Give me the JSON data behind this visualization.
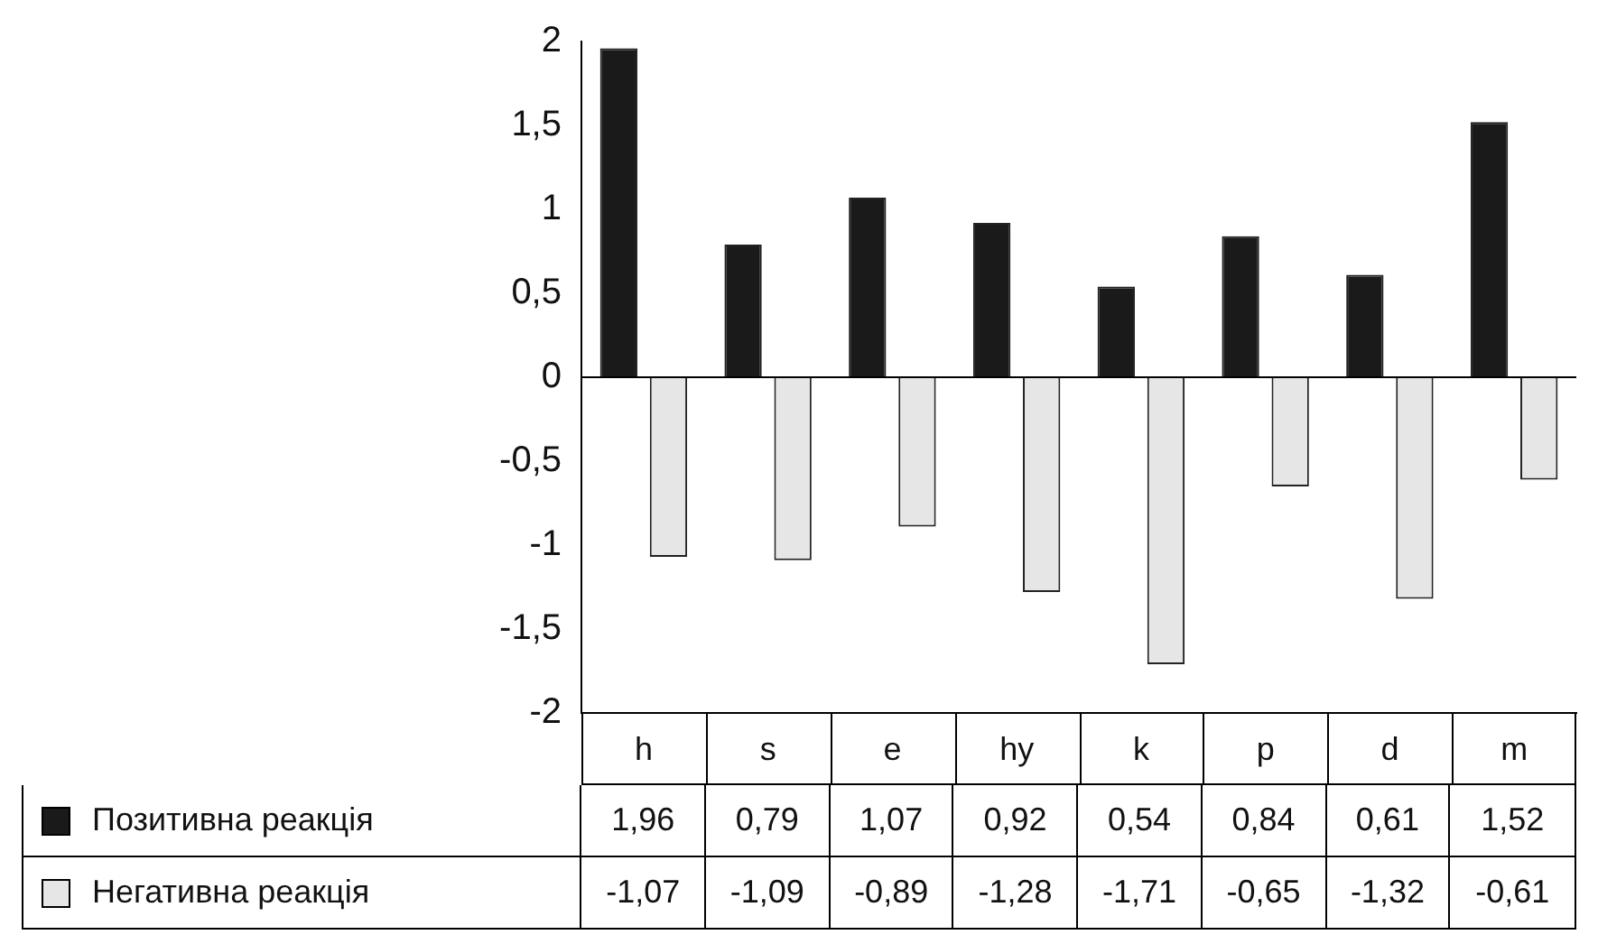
{
  "chart_data": {
    "type": "bar",
    "categories": [
      "h",
      "s",
      "e",
      "hy",
      "k",
      "p",
      "d",
      "m"
    ],
    "series": [
      {
        "name": "Позитивна реакція",
        "color": "#1a1a1a",
        "values": [
          1.96,
          0.79,
          1.07,
          0.92,
          0.54,
          0.84,
          0.61,
          1.52
        ],
        "value_labels": [
          "1,96",
          "0,79",
          "1,07",
          "0,92",
          "0,54",
          "0,84",
          "0,61",
          "1,52"
        ]
      },
      {
        "name": "Негативна реакція",
        "color": "#e6e6e6",
        "values": [
          -1.07,
          -1.09,
          -0.89,
          -1.28,
          -1.71,
          -0.65,
          -1.32,
          -0.61
        ],
        "value_labels": [
          "-1,07",
          "-1,09",
          "-0,89",
          "-1,28",
          "-1,71",
          "-0,65",
          "-1,32",
          "-0,61"
        ]
      }
    ],
    "ylim": [
      -2,
      2
    ],
    "yticks": [
      -2,
      {
        "value": -1.5,
        "label": "-1,5"
      },
      -1,
      {
        "value": -0.5,
        "label": "-0,5"
      },
      0,
      {
        "value": 0.5,
        "label": "0,5"
      },
      1,
      {
        "value": 1.5,
        "label": "1,5"
      },
      2
    ],
    "ref_lines": [
      {
        "axis": "y",
        "value": 0,
        "color": "#000000"
      }
    ],
    "grid": false,
    "legend": "bottom"
  }
}
